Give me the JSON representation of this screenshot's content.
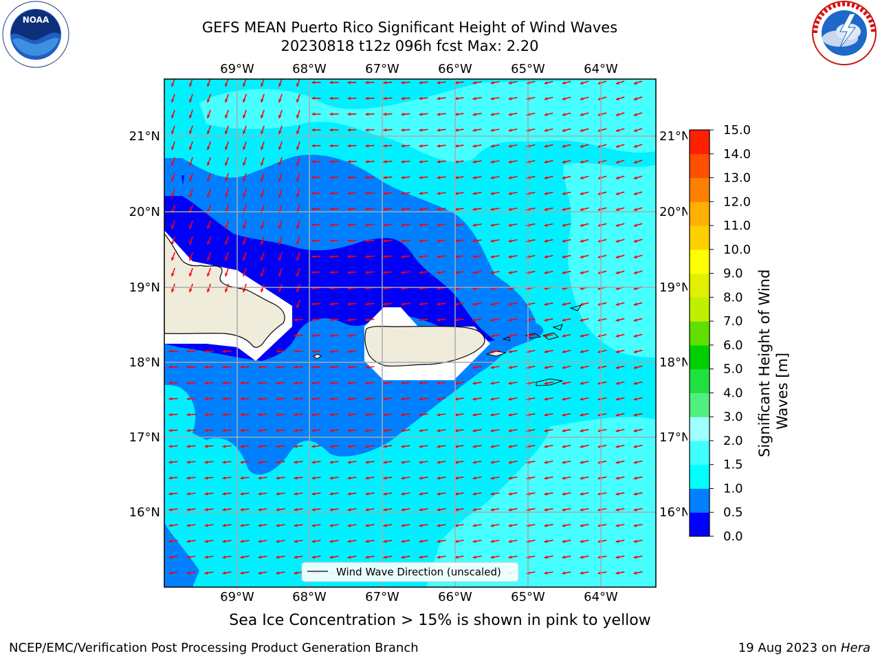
{
  "header": {
    "title_line1": "GEFS MEAN Puerto Rico Significant Height of Wind Waves",
    "title_line2": "20230818 t12z 096h fcst   Max: 2.20"
  },
  "logos": {
    "noaa": {
      "label": "NOAA",
      "ring_text": "NATIONAL OCEANIC AND ATMOSPHERIC ADMINISTRATION · U.S. DEPARTMENT OF COMMERCE"
    },
    "nws": {
      "ring_text": "NATIONAL WEATHER SERVICE"
    }
  },
  "map": {
    "lon_labels": [
      "69°W",
      "68°W",
      "67°W",
      "66°W",
      "65°W",
      "64°W"
    ],
    "lat_labels": [
      "21°N",
      "20°N",
      "19°N",
      "18°N",
      "17°N",
      "16°N"
    ],
    "legend_label": "Wind Wave Direction (unscaled)",
    "colors": {
      "land": "#efecdc",
      "ocean_0": "#0000f5",
      "ocean_05": "#0080ff",
      "ocean_1": "#00f0ff",
      "ocean_15": "#48ffff",
      "arrow": "#ff0000"
    }
  },
  "colorbar": {
    "label_line1": "Significant Height of Wind",
    "label_line2": "Waves [m]",
    "ticks": [
      "0.0",
      "0.5",
      "1.0",
      "1.5",
      "2.0",
      "3.0",
      "4.0",
      "5.0",
      "6.0",
      "7.0",
      "8.0",
      "9.0",
      "10.0",
      "11.0",
      "12.0",
      "13.0",
      "14.0",
      "15.0"
    ],
    "colors": [
      "#0000ff",
      "#0080ff",
      "#00ffff",
      "#40ffff",
      "#a0ffff",
      "#50f080",
      "#20e040",
      "#00d000",
      "#60e000",
      "#c0f000",
      "#e0f000",
      "#ffff00",
      "#ffd000",
      "#ffb000",
      "#ff8000",
      "#ff5000",
      "#ff2000"
    ]
  },
  "subtitle": "Sea Ice Concentration > 15% is shown in pink to yellow",
  "footer": {
    "left": "NCEP/EMC/Verification Post Processing Product Generation Branch",
    "right_date": "19 Aug 2023 on ",
    "right_host": "Hera"
  }
}
